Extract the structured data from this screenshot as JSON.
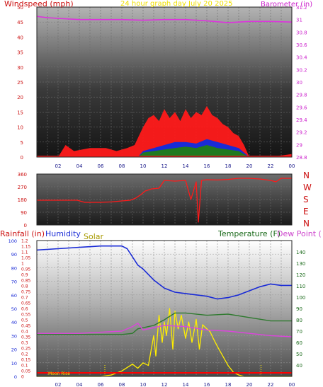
{
  "header": {
    "windspeed_label": "Windspeed (mph)",
    "date_label": "24 hour graph day   July 20 2025",
    "barometer_label": "Barometer (in)"
  },
  "colors": {
    "wind_red": "#ff1a1a",
    "wind_blue": "#1a2bd6",
    "wind_green": "#1f7a1f",
    "barometer": "#dd33dd",
    "axis_red": "#cc1111",
    "axis_magenta": "#cc22cc",
    "axis_green": "#1a6a1a",
    "humidity": "#1a2bd6",
    "solar": "#ffee00",
    "temperature": "#2f7a2f",
    "dewpoint": "#dd44dd",
    "rainfall": "#ff0000"
  },
  "chart_data": [
    {
      "type": "line",
      "title": "",
      "x_ticks": [
        "02",
        "04",
        "06",
        "08",
        "10",
        "12",
        "14",
        "16",
        "18",
        "20",
        "22",
        "00"
      ],
      "xlabel": "",
      "left_axis": {
        "label": "Windspeed (mph)",
        "ylim": [
          0,
          50
        ],
        "ticks": [
          0,
          5,
          10,
          15,
          20,
          25,
          30,
          35,
          40,
          45,
          50
        ]
      },
      "right_axis": {
        "label": "Barometer (in)",
        "ylim": [
          28.8,
          31.2
        ],
        "ticks": [
          "28.8",
          "29",
          "29.2",
          "29.4",
          "29.6",
          "29.8",
          "30",
          "30.2",
          "30.4",
          "30.6",
          "30.8",
          "31",
          "31.2"
        ]
      },
      "series": [
        {
          "name": "Barometer (in)",
          "axis": "right",
          "color": "#dd33dd",
          "x": [
            0,
            1,
            2,
            4,
            6,
            8,
            10,
            12,
            14,
            16,
            18,
            19,
            20,
            22,
            24
          ],
          "y": [
            31.05,
            31.03,
            31.02,
            31.0,
            31.0,
            31.0,
            30.99,
            31.0,
            31.0,
            30.98,
            30.95,
            30.96,
            30.97,
            30.97,
            30.96
          ]
        },
        {
          "axis": "left",
          "role": "gust",
          "color": "#ff1a1a",
          "x": [
            0,
            2,
            2.7,
            3.5,
            5,
            6.5,
            7.5,
            8.5,
            9.2,
            9.6,
            10.0,
            10.5,
            11,
            11.5,
            12,
            12.5,
            13,
            13.5,
            14,
            14.5,
            15,
            15.5,
            16,
            16.5,
            17,
            17.5,
            18,
            18.5,
            19,
            19.5,
            20,
            22,
            24
          ],
          "y": [
            0,
            0,
            4,
            2,
            3,
            3,
            2,
            3,
            4,
            7,
            10,
            13,
            14,
            12,
            16,
            13,
            15,
            12,
            16,
            13,
            15,
            14,
            17,
            14,
            13,
            11,
            10,
            8,
            7,
            4,
            0,
            0,
            1
          ]
        },
        {
          "axis": "left",
          "role": "average",
          "color": "#1a2bd6",
          "x": [
            0,
            9.5,
            10,
            11,
            12,
            13,
            14,
            15,
            16,
            17,
            18,
            19,
            20,
            24
          ],
          "y": [
            0,
            0,
            2,
            3,
            4,
            5,
            5,
            4.5,
            6,
            5,
            4,
            3,
            0,
            0
          ]
        },
        {
          "axis": "left",
          "role": "low",
          "color": "#1f7a1f",
          "x": [
            0,
            9.5,
            10,
            11,
            12,
            13,
            14,
            15,
            16,
            17,
            18,
            19,
            20,
            24
          ],
          "y": [
            0,
            0,
            1.5,
            2,
            2.5,
            3,
            3.5,
            3,
            4,
            3,
            2.5,
            2,
            0,
            0
          ]
        }
      ]
    },
    {
      "type": "line",
      "title": "",
      "left_axis": {
        "ylim": [
          0,
          360
        ],
        "ticks": [
          0,
          90,
          180,
          270,
          360
        ]
      },
      "right_labels": [
        "N",
        "W",
        "S",
        "E",
        "N"
      ],
      "series": [
        {
          "role": "wind direction",
          "color": "#ff1a1a",
          "x": [
            0,
            2,
            3.8,
            4.5,
            6,
            7,
            8,
            8.8,
            9.3,
            9.8,
            10.2,
            10.8,
            11.5,
            12,
            13,
            14,
            14.5,
            15,
            15.2,
            15.5,
            16,
            17,
            18,
            19,
            20,
            21,
            22,
            22.5,
            23,
            24
          ],
          "y": [
            175,
            175,
            175,
            160,
            160,
            163,
            170,
            175,
            190,
            215,
            240,
            255,
            260,
            315,
            310,
            315,
            180,
            305,
            20,
            315,
            320,
            318,
            322,
            330,
            330,
            325,
            315,
            305,
            330,
            330
          ]
        }
      ]
    },
    {
      "type": "line",
      "title": "",
      "x_ticks": [
        "02",
        "04",
        "06",
        "08",
        "10",
        "12",
        "14",
        "16",
        "18",
        "20",
        "22",
        "00"
      ],
      "axis_labels": {
        "rainfall": "Rainfall (in)",
        "humidity": "Humidity",
        "solar": "Solar",
        "temperature": "Temperature (F)",
        "dewpoint": "Dew Point ("
      },
      "annotations": [
        "Moon Rise"
      ],
      "left_axis_humidity": {
        "ylim": [
          0,
          100
        ],
        "ticks": [
          0,
          10,
          20,
          30,
          40,
          50,
          60,
          70,
          80,
          90,
          100
        ]
      },
      "left_axis_rainfall": {
        "ylim": [
          0,
          1.2
        ],
        "ticks": [
          "0",
          "0.05",
          "0.1",
          "0.15",
          "0.2",
          "0.25",
          "0.3",
          "0.35",
          "0.4",
          "0.45",
          "0.5",
          "0.55",
          "0.6",
          "0.65",
          "0.7",
          "0.75",
          "0.8",
          "0.85",
          "0.9",
          "0.95",
          "1",
          "1.05",
          "1.1",
          "1.15",
          "1.2"
        ]
      },
      "right_axis": {
        "ylim": [
          30,
          150
        ],
        "ticks": [
          40,
          50,
          60,
          70,
          80,
          90,
          100,
          110,
          120,
          130,
          140
        ]
      },
      "series": [
        {
          "name": "Humidity",
          "axis": "humidity",
          "color": "#1a2bd6",
          "x": [
            0,
            2,
            4,
            6,
            8,
            8.5,
            9,
            9.5,
            10,
            11,
            12,
            13,
            14,
            15,
            16,
            17,
            18,
            19,
            20,
            21,
            22,
            23,
            24
          ],
          "y": [
            93,
            94,
            95,
            96,
            96,
            94,
            88,
            82,
            79,
            71,
            65,
            62,
            61,
            60,
            59,
            57,
            58,
            60,
            63,
            66,
            68,
            67,
            67
          ]
        },
        {
          "name": "Temperature (F)",
          "axis": "right",
          "color": "#2f7a2f",
          "x": [
            0,
            8,
            9,
            9.5,
            10,
            11,
            12,
            13,
            14,
            16,
            18,
            20,
            22,
            24
          ],
          "y": [
            67,
            67,
            68,
            72,
            73,
            75,
            80,
            86,
            86,
            84,
            85,
            82,
            79,
            79
          ]
        },
        {
          "name": "Dew Point (",
          "axis": "right",
          "color": "#dd44dd",
          "x": [
            0,
            2,
            4,
            6,
            8,
            9,
            9.5,
            10,
            11,
            12,
            14,
            16,
            18,
            20,
            22,
            24
          ],
          "y": [
            68,
            68,
            68,
            69,
            70,
            74,
            77,
            71,
            73,
            75,
            74,
            71,
            70,
            68,
            66,
            65
          ]
        },
        {
          "name": "Solar",
          "axis": "humidity",
          "color": "#ffee00",
          "x": [
            0,
            6,
            7,
            8,
            9,
            9.5,
            10,
            10.5,
            11,
            11.2,
            11.5,
            11.8,
            12,
            12.2,
            12.5,
            12.8,
            13,
            13.3,
            13.6,
            14,
            14.3,
            14.6,
            15,
            15.3,
            15.6,
            16,
            16.3,
            16.6,
            17,
            17.5,
            18,
            18.5,
            19,
            19.5,
            24
          ],
          "y": [
            0,
            0,
            1,
            4,
            9,
            6,
            10,
            8,
            30,
            15,
            45,
            25,
            40,
            30,
            50,
            20,
            48,
            35,
            45,
            28,
            40,
            25,
            42,
            20,
            38,
            35,
            33,
            28,
            22,
            15,
            8,
            3,
            1,
            0,
            0
          ]
        },
        {
          "name": "Rainfall (in)",
          "axis": "rainfall",
          "color": "#ff0000",
          "x": [
            0,
            24
          ],
          "y": [
            0,
            0
          ]
        }
      ]
    }
  ]
}
